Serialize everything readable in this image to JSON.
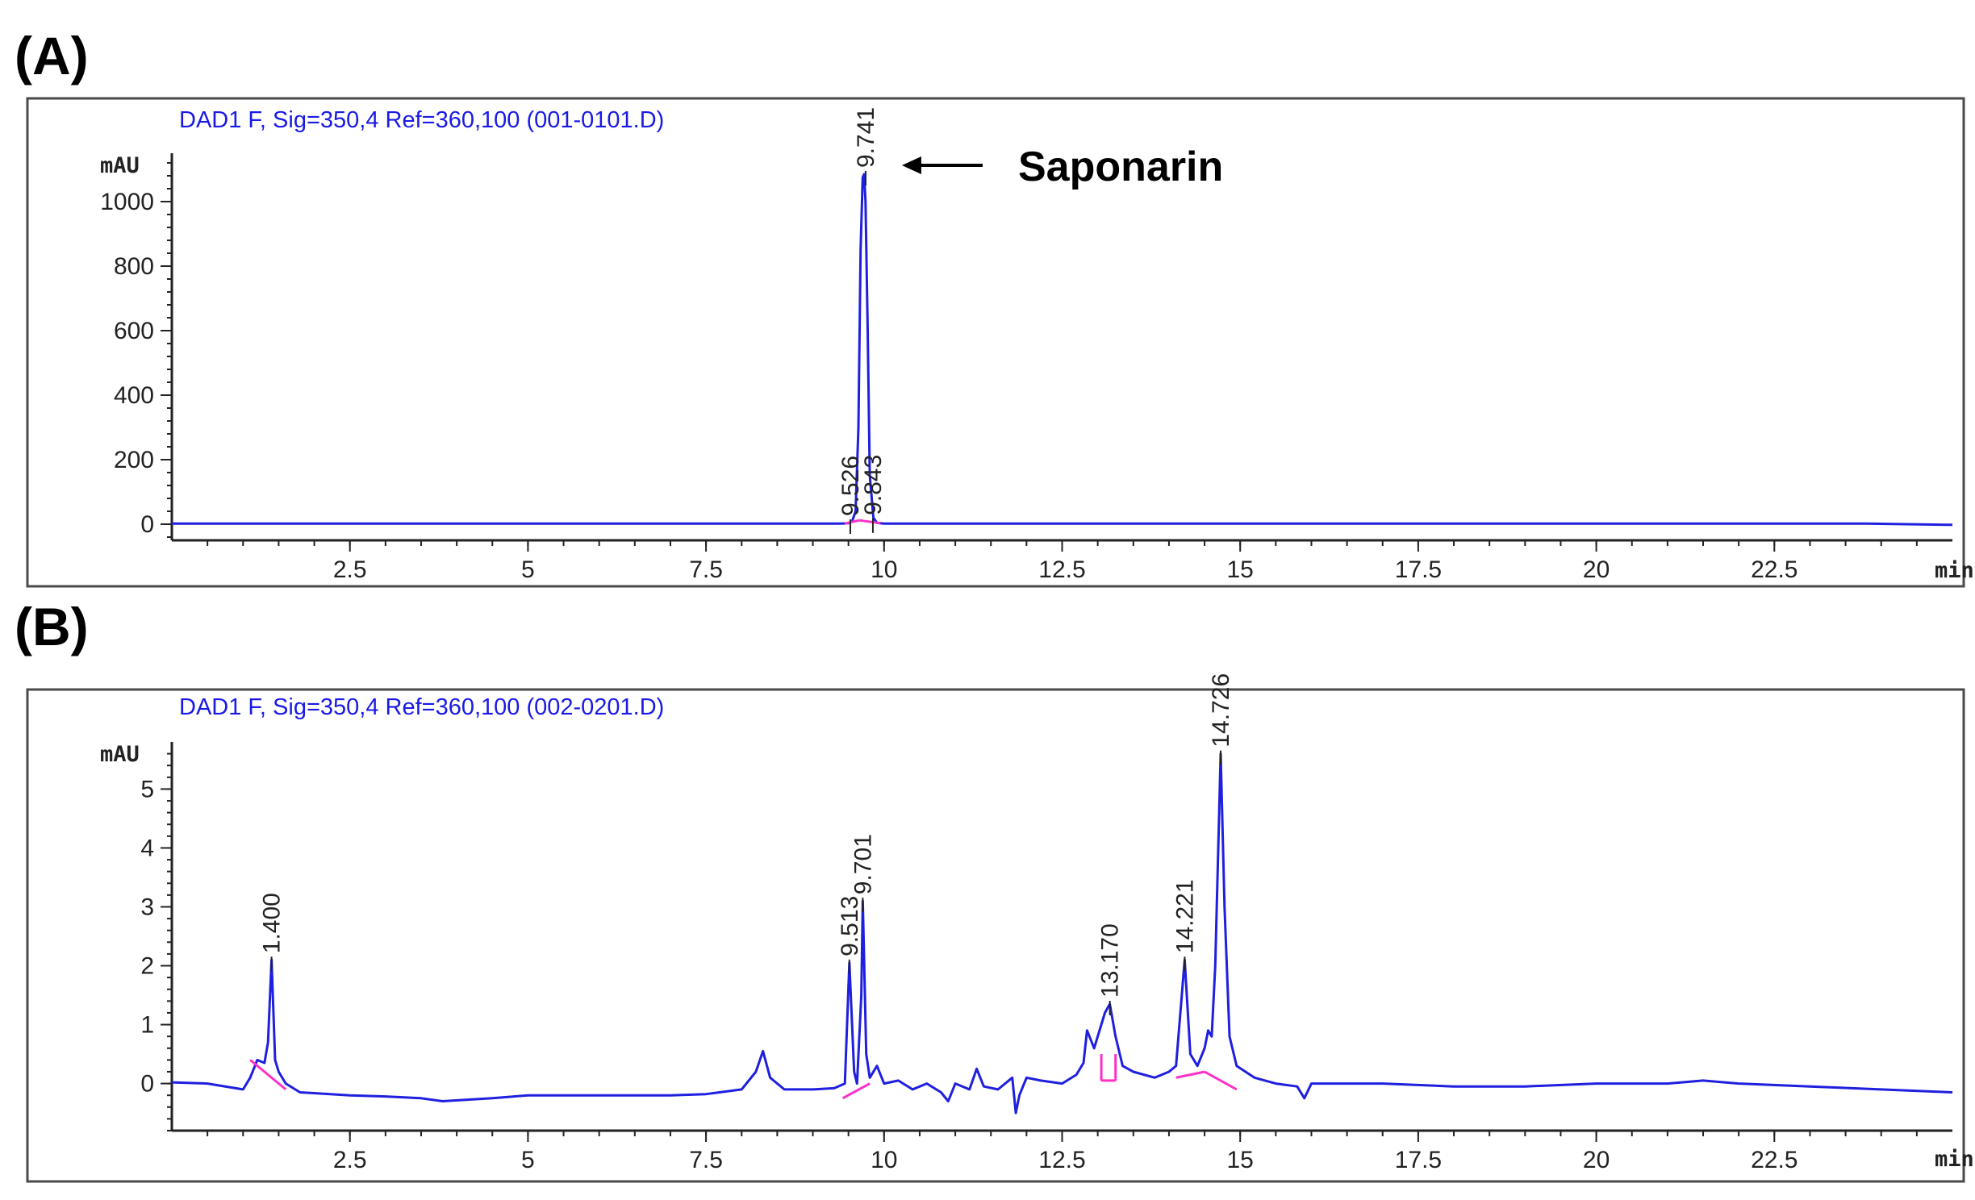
{
  "chart_data": [
    {
      "panel": "(A)",
      "type": "line",
      "title": "DAD1 F, Sig=350,4 Ref=360,100 (001-0101.D)",
      "ylabel": "mAU",
      "xunit": "min",
      "xlim": [
        0,
        25
      ],
      "ylim": [
        -50,
        1150
      ],
      "xticks": [
        2.5,
        5,
        7.5,
        10,
        12.5,
        15,
        17.5,
        20,
        22.5
      ],
      "xtick_labels": [
        "2.5",
        "5",
        "7.5",
        "10",
        "12.5",
        "15",
        "17.5",
        "20",
        "22.5"
      ],
      "yticks": [
        0,
        200,
        400,
        600,
        800,
        1000
      ],
      "ytick_labels": [
        "0",
        "200",
        "400",
        "600",
        "800",
        "1000"
      ],
      "grid": false,
      "series": [
        {
          "x": [
            0,
            9.4,
            9.5,
            9.55,
            9.6,
            9.64,
            9.67,
            9.7,
            9.72,
            9.74,
            9.77,
            9.8,
            9.85,
            9.9,
            10.0,
            23.8,
            25.0
          ],
          "y": [
            2,
            2,
            3,
            8,
            40,
            300,
            850,
            1075,
            1085,
            1000,
            600,
            150,
            20,
            4,
            2,
            2,
            -2
          ]
        }
      ],
      "peaks": [
        {
          "label": "9.526",
          "x": 9.526,
          "y": 5
        },
        {
          "label": "9.741",
          "x": 9.741,
          "y": 1085
        },
        {
          "label": "9.843",
          "x": 9.843,
          "y": 8
        }
      ],
      "baselines": [
        {
          "x1": 9.45,
          "y1": 2,
          "x2": 9.65,
          "y2": 12
        },
        {
          "x1": 9.65,
          "y1": 12,
          "x2": 9.95,
          "y2": 3
        }
      ],
      "annotation": {
        "text": "Saponarin",
        "arrow_to_x": 9.741
      }
    },
    {
      "panel": "(B)",
      "type": "line",
      "title": "DAD1 F, Sig=350,4 Ref=360,100 (002-0201.D)",
      "ylabel": "mAU",
      "xunit": "min",
      "xlim": [
        0,
        25
      ],
      "ylim": [
        -0.8,
        5.8
      ],
      "xticks": [
        2.5,
        5,
        7.5,
        10,
        12.5,
        15,
        17.5,
        20,
        22.5
      ],
      "xtick_labels": [
        "2.5",
        "5",
        "7.5",
        "10",
        "12.5",
        "15",
        "17.5",
        "20",
        "22.5"
      ],
      "yticks": [
        0,
        1,
        2,
        3,
        4,
        5
      ],
      "ytick_labels": [
        "0",
        "1",
        "2",
        "3",
        "4",
        "5"
      ],
      "grid": false,
      "series": [
        {
          "x": [
            0,
            0.5,
            1.0,
            1.1,
            1.2,
            1.3,
            1.35,
            1.4,
            1.45,
            1.5,
            1.6,
            1.8,
            2.5,
            3.0,
            3.5,
            3.8,
            4.5,
            5.0,
            6.0,
            7.0,
            7.5,
            8.0,
            8.2,
            8.3,
            8.4,
            8.6,
            9.0,
            9.3,
            9.45,
            9.513,
            9.58,
            9.62,
            9.68,
            9.701,
            9.75,
            9.8,
            9.9,
            10.0,
            10.2,
            10.4,
            10.6,
            10.8,
            10.9,
            11.0,
            11.2,
            11.3,
            11.4,
            11.6,
            11.8,
            11.85,
            11.9,
            12.0,
            12.2,
            12.5,
            12.7,
            12.8,
            12.85,
            12.95,
            13.0,
            13.05,
            13.1,
            13.17,
            13.25,
            13.35,
            13.5,
            13.8,
            14.0,
            14.1,
            14.221,
            14.3,
            14.4,
            14.5,
            14.55,
            14.6,
            14.65,
            14.726,
            14.78,
            14.85,
            14.95,
            15.2,
            15.5,
            15.8,
            15.9,
            16.0,
            16.5,
            17.0,
            18.0,
            19.0,
            20.0,
            21.0,
            21.5,
            22.0,
            23.0,
            24.0,
            25.0
          ],
          "y": [
            0.02,
            0.0,
            -0.1,
            0.1,
            0.4,
            0.35,
            0.7,
            2.1,
            0.4,
            0.2,
            0.0,
            -0.15,
            -0.2,
            -0.22,
            -0.25,
            -0.3,
            -0.25,
            -0.2,
            -0.2,
            -0.2,
            -0.18,
            -0.1,
            0.2,
            0.55,
            0.1,
            -0.1,
            -0.1,
            -0.08,
            0.0,
            2.05,
            0.2,
            0.0,
            1.5,
            3.1,
            0.5,
            0.1,
            0.3,
            0.0,
            0.05,
            -0.1,
            0.0,
            -0.15,
            -0.3,
            0.0,
            -0.1,
            0.25,
            -0.05,
            -0.1,
            0.1,
            -0.5,
            -0.2,
            0.1,
            0.05,
            0.0,
            0.15,
            0.35,
            0.9,
            0.6,
            0.8,
            1.0,
            1.2,
            1.35,
            0.8,
            0.3,
            0.2,
            0.1,
            0.2,
            0.3,
            2.1,
            0.5,
            0.3,
            0.6,
            0.9,
            0.8,
            2.0,
            5.6,
            3.0,
            0.8,
            0.3,
            0.1,
            0.0,
            -0.05,
            -0.25,
            0.0,
            0.0,
            0.0,
            -0.05,
            -0.05,
            0.0,
            0.0,
            0.05,
            0.0,
            -0.05,
            -0.1,
            -0.15
          ]
        }
      ],
      "peaks": [
        {
          "label": "1.400",
          "x": 1.4,
          "y": 2.1
        },
        {
          "label": "9.513",
          "x": 9.513,
          "y": 2.05
        },
        {
          "label": "9.701",
          "x": 9.701,
          "y": 3.1
        },
        {
          "label": "13.170",
          "x": 13.17,
          "y": 1.35
        },
        {
          "label": "14.221",
          "x": 14.221,
          "y": 2.1
        },
        {
          "label": "14.726",
          "x": 14.726,
          "y": 5.6
        }
      ],
      "baselines": [
        {
          "x1": 1.1,
          "y1": 0.4,
          "x2": 1.6,
          "y2": -0.1
        },
        {
          "x1": 9.42,
          "y1": -0.25,
          "x2": 9.8,
          "y2": 0.0
        },
        {
          "x1": 13.05,
          "y1": 0.05,
          "x2": 13.05,
          "y2": 0.5
        },
        {
          "x1": 13.05,
          "y1": 0.05,
          "x2": 13.25,
          "y2": 0.05
        },
        {
          "x1": 13.25,
          "y1": 0.05,
          "x2": 13.25,
          "y2": 0.5
        },
        {
          "x1": 14.1,
          "y1": 0.1,
          "x2": 14.5,
          "y2": 0.2
        },
        {
          "x1": 14.5,
          "y1": 0.2,
          "x2": 14.95,
          "y2": -0.1
        }
      ]
    }
  ]
}
